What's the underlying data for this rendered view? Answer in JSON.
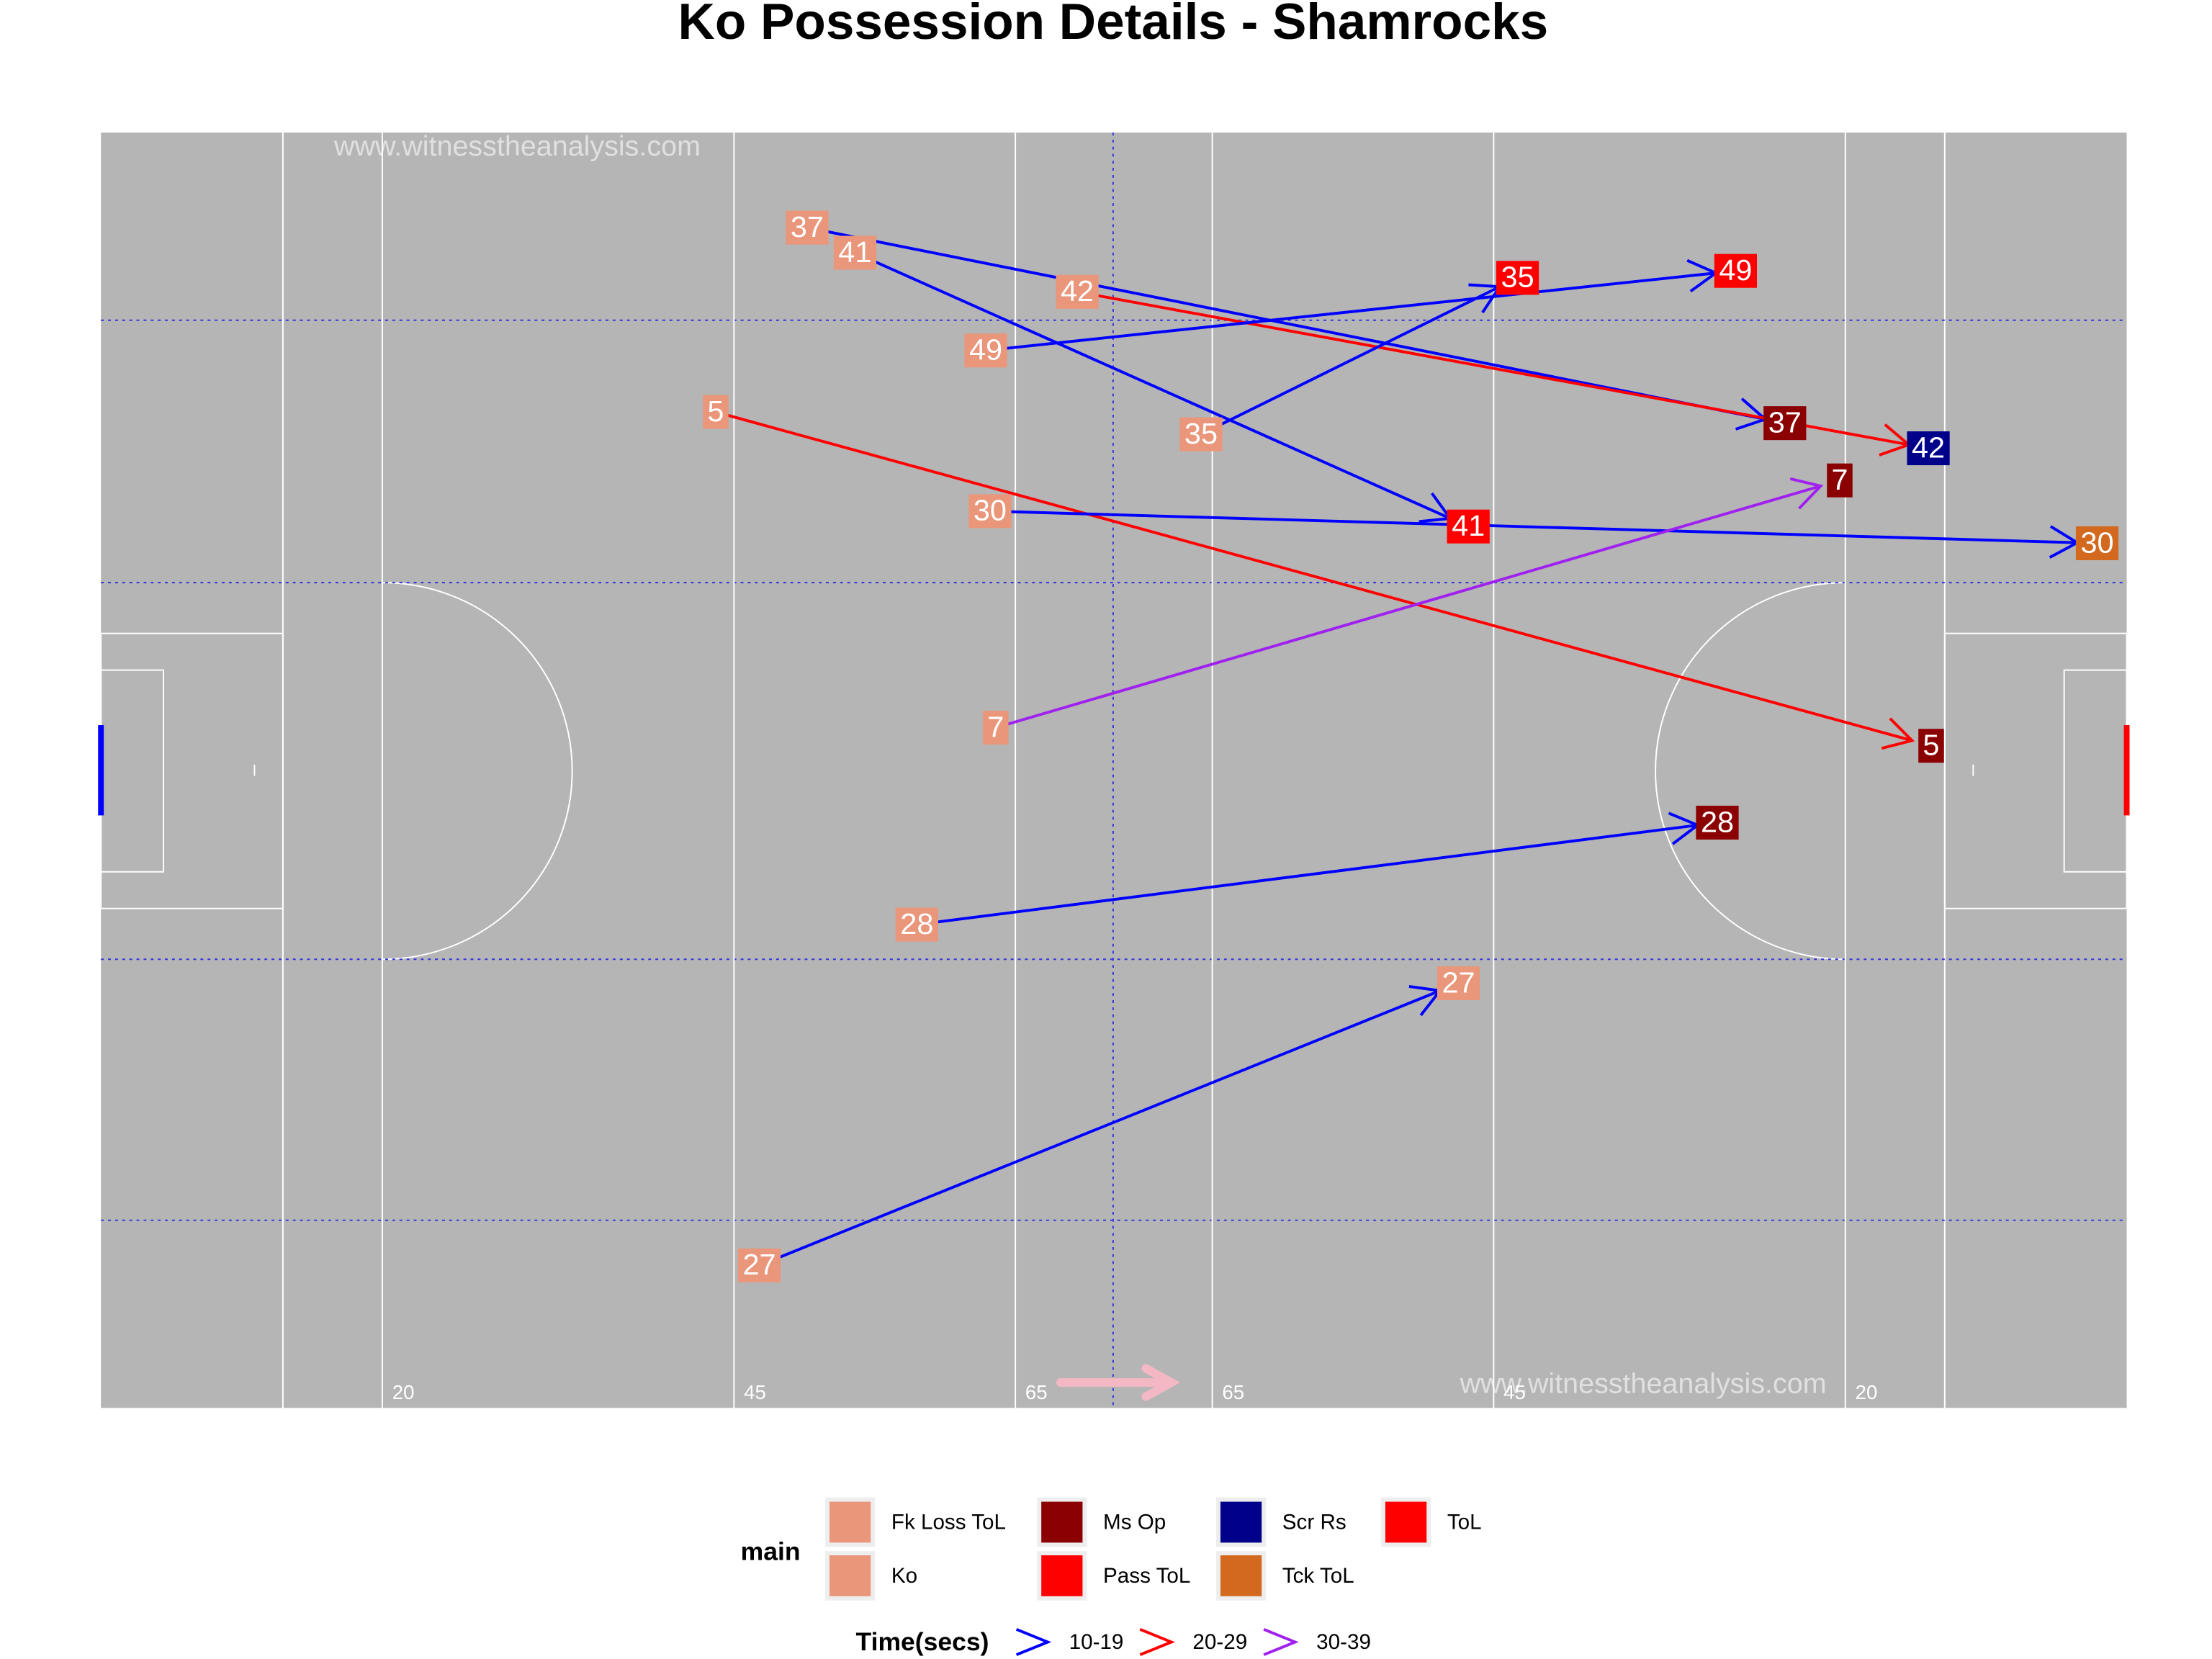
{
  "chart_data": {
    "type": "arrow",
    "title": "Ko Possession Details - Shamrocks",
    "watermark": "www.witnesstheanalysis.com",
    "xlim": [
      0,
      144
    ],
    "ylim": [
      0,
      91.3
    ],
    "xticks": [
      20,
      45,
      65,
      {
        "value": 79,
        "label": "65"
      },
      {
        "value": 99,
        "label": "45"
      },
      {
        "value": 124,
        "label": "20"
      }
    ],
    "legend": {
      "title": "main",
      "items": [
        {
          "name": "Fk Loss ToL",
          "color": "#E9967A"
        },
        {
          "name": "Ko",
          "color": "#E9967A"
        },
        {
          "name": "Ms Op",
          "color": "#8B0000"
        },
        {
          "name": "Pass ToL",
          "color": "#FF0000"
        },
        {
          "name": "Scr Rs",
          "color": "#00008B"
        },
        {
          "name": "Tck ToL",
          "color": "#D2691E"
        },
        {
          "name": "ToL",
          "color": "#FF0000"
        }
      ]
    },
    "time_legend": {
      "title": "Time(secs)",
      "items": [
        {
          "name": "10-19",
          "color": "#0000FF"
        },
        {
          "name": "20-29",
          "color": "#FF0000"
        },
        {
          "name": "30-39",
          "color": "#A020F0"
        }
      ]
    },
    "arrows": [
      {
        "label": 37,
        "start_type": "Ko",
        "end_type": "Ms Op",
        "time": "10-19",
        "x": [
          50.2,
          119.7
        ],
        "y": [
          84.5,
          70.5
        ]
      },
      {
        "label": 41,
        "start_type": "Ko",
        "end_type": "ToL",
        "time": "10-19",
        "x": [
          53.6,
          97.2
        ],
        "y": [
          82.7,
          63.1
        ]
      },
      {
        "label": 42,
        "start_type": "Ko",
        "end_type": "Scr Rs",
        "time": "20-29",
        "x": [
          69.4,
          129.9
        ],
        "y": [
          79.9,
          68.7
        ]
      },
      {
        "label": 49,
        "start_type": "Ko",
        "end_type": "Pass ToL",
        "time": "10-19",
        "x": [
          62.9,
          116.2
        ],
        "y": [
          75.7,
          81.4
        ]
      },
      {
        "label": 35,
        "start_type": "Ko",
        "end_type": "ToL",
        "time": "10-19",
        "x": [
          78.2,
          100.7
        ],
        "y": [
          69.7,
          80.9
        ]
      },
      {
        "label": 5,
        "start_type": "Ko",
        "end_type": "Ms Op",
        "time": "20-29",
        "x": [
          43.7,
          130.1
        ],
        "y": [
          71.3,
          47.4
        ]
      },
      {
        "label": 30,
        "start_type": "Ko",
        "end_type": "Tck ToL",
        "time": "10-19",
        "x": [
          63.2,
          141.9
        ],
        "y": [
          64.2,
          61.9
        ]
      },
      {
        "label": 7,
        "start_type": "Ko",
        "end_type": "Ms Op",
        "time": "30-39",
        "x": [
          63.6,
          123.6
        ],
        "y": [
          48.7,
          66.4
        ]
      },
      {
        "label": 28,
        "start_type": "Ko",
        "end_type": "Ms Op",
        "time": "10-19",
        "x": [
          58.0,
          114.9
        ],
        "y": [
          34.6,
          41.9
        ]
      },
      {
        "label": 27,
        "start_type": "Ko",
        "end_type": "Fk Loss ToL",
        "time": "10-19",
        "x": [
          46.8,
          96.5
        ],
        "y": [
          10.2,
          30.4
        ]
      }
    ]
  }
}
